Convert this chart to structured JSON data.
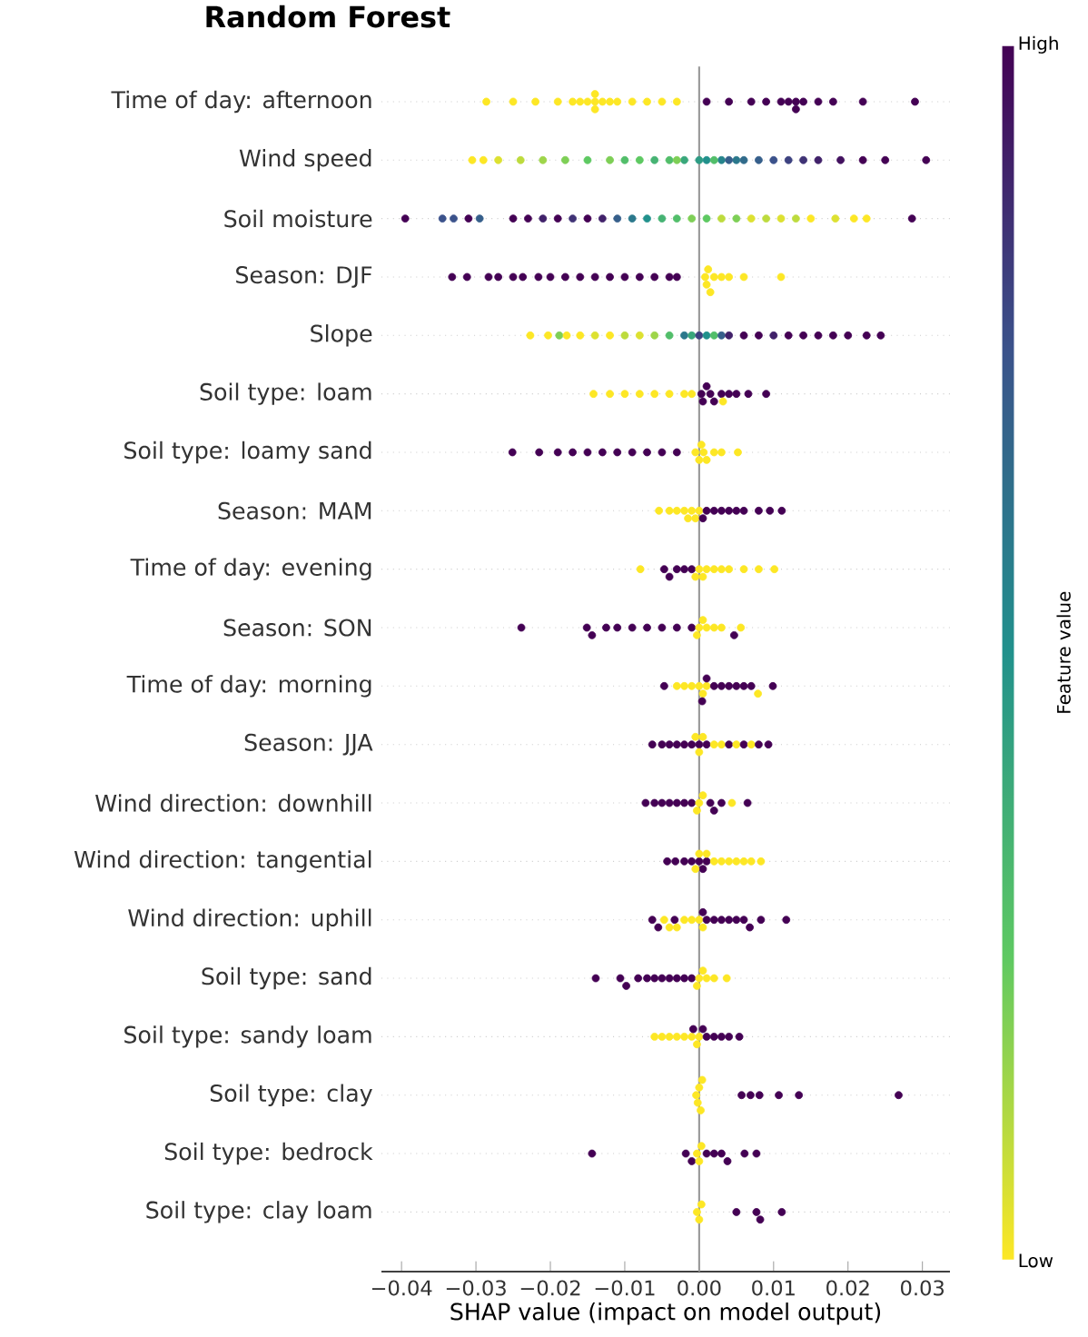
{
  "chart_data": {
    "type": "scatter",
    "orientation": "horizontal",
    "title": "Random Forest",
    "xlabel": "SHAP value (impact on model output)",
    "clabel": "Feature value",
    "marker": "circle",
    "grid": "y",
    "categories": [
      "Time of day: afternoon",
      "Wind speed",
      "Soil moisture",
      "Season: DJF",
      "Slope",
      "Soil type: loam",
      "Soil type: loamy sand",
      "Season: MAM",
      "Time of day: evening",
      "Season: SON",
      "Time of day: morning",
      "Season: JJA",
      "Wind direction: downhill",
      "Wind direction: tangential",
      "Wind direction: uphill",
      "Soil type: sand",
      "Soil type: sandy loam",
      "Soil type: clay",
      "Soil type: bedrock",
      "Soil type: clay loam"
    ],
    "xlim": [
      -0.0427,
      0.0337
    ],
    "xticks": [
      {
        "value": -0.04,
        "label": "−0.04"
      },
      {
        "value": -0.03,
        "label": "−0.03"
      },
      {
        "value": -0.02,
        "label": "−0.02"
      },
      {
        "value": -0.01,
        "label": "−0.01"
      },
      {
        "value": 0,
        "label": "0.00"
      },
      {
        "value": 0.01,
        "label": "0.01"
      },
      {
        "value": 0.02,
        "label": "0.02"
      },
      {
        "value": 0.03,
        "label": "0.03"
      }
    ],
    "clim": [
      0,
      1
    ],
    "cticks": [
      {
        "value": 0,
        "label": "Low"
      },
      {
        "value": 1,
        "label": "High"
      }
    ],
    "ref_lines": [
      {
        "axis": "x",
        "value": 0,
        "color": "#999999"
      }
    ],
    "series": [
      {
        "x": [
          "Time of day: afternoon",
          "Time of day: afternoon",
          "Time of day: afternoon",
          "Time of day: afternoon",
          "Time of day: afternoon",
          "Time of day: afternoon",
          "Time of day: afternoon",
          "Time of day: afternoon",
          "Time of day: afternoon",
          "Time of day: afternoon",
          "Time of day: afternoon",
          "Time of day: afternoon",
          "Time of day: afternoon",
          "Time of day: afternoon",
          "Time of day: afternoon",
          "Time of day: afternoon",
          "Time of day: afternoon",
          "Time of day: afternoon",
          "Time of day: afternoon",
          "Time of day: afternoon",
          "Time of day: afternoon",
          "Time of day: afternoon",
          "Time of day: afternoon",
          "Time of day: afternoon",
          "Time of day: afternoon",
          "Time of day: afternoon",
          "Time of day: afternoon",
          "Time of day: afternoon",
          "Time of day: afternoon",
          "Time of day: afternoon"
        ],
        "values": [
          -0.0286,
          -0.025,
          -0.022,
          -0.019,
          -0.017,
          -0.016,
          -0.015,
          -0.014,
          -0.014,
          -0.014,
          -0.013,
          -0.012,
          -0.011,
          -0.009,
          -0.007,
          -0.005,
          -0.003,
          0.001,
          0.004,
          0.007,
          0.009,
          0.011,
          0.012,
          0.013,
          0.013,
          0.014,
          0.016,
          0.018,
          0.022,
          0.029
        ],
        "cvalues": [
          0,
          0,
          0,
          0,
          0,
          0,
          0,
          0,
          0,
          0,
          0,
          0,
          0,
          0,
          0,
          0,
          0,
          1,
          1,
          1,
          1,
          1,
          1,
          1,
          1,
          1,
          1,
          1,
          1,
          1
        ],
        "colors": [
          "#fde725",
          "#fde725",
          "#fde725",
          "#fde725",
          "#fde725",
          "#fde725",
          "#fde725",
          "#fde725",
          "#fde725",
          "#fde725",
          "#fde725",
          "#fde725",
          "#fde725",
          "#fde725",
          "#fde725",
          "#fde725",
          "#fde725",
          "#440154",
          "#440154",
          "#440154",
          "#440154",
          "#440154",
          "#440154",
          "#440154",
          "#440154",
          "#440154",
          "#440154",
          "#440154",
          "#440154",
          "#440154"
        ]
      },
      {
        "x": [
          "Wind speed",
          "Wind speed",
          "Wind speed",
          "Wind speed",
          "Wind speed",
          "Wind speed",
          "Wind speed",
          "Wind speed",
          "Wind speed",
          "Wind speed",
          "Wind speed",
          "Wind speed",
          "Wind speed",
          "Wind speed",
          "Wind speed",
          "Wind speed",
          "Wind speed",
          "Wind speed",
          "Wind speed",
          "Wind speed",
          "Wind speed",
          "Wind speed",
          "Wind speed",
          "Wind speed",
          "Wind speed",
          "Wind speed",
          "Wind speed",
          "Wind speed",
          "Wind speed",
          "Wind speed"
        ],
        "values": [
          -0.0305,
          -0.029,
          -0.027,
          -0.024,
          -0.021,
          -0.018,
          -0.015,
          -0.012,
          -0.01,
          -0.008,
          -0.006,
          -0.004,
          -0.002,
          0,
          0.001,
          0.003,
          0.005,
          0.006,
          0.008,
          0.01,
          0.012,
          0.014,
          0.016,
          0.019,
          0.022,
          0.025,
          0.0305,
          -0.003,
          0.002,
          0.004
        ],
        "cvalues": [
          0,
          0,
          0.05,
          0.1,
          0.15,
          0.2,
          0.25,
          0.2,
          0.3,
          0.25,
          0.35,
          0.3,
          0.4,
          0.45,
          0.5,
          0.55,
          0.6,
          0.65,
          0.7,
          0.75,
          0.8,
          0.85,
          0.9,
          0.95,
          1,
          1,
          1,
          0.2,
          0.3,
          0.7
        ],
        "colors": [
          "#fde725",
          "#fde725",
          "#dde131",
          "#bddb3d",
          "#9ed54a",
          "#7ecf56",
          "#5ec962",
          "#7ecf56",
          "#52be6a",
          "#5ec962",
          "#46b373",
          "#52be6a",
          "#39a77b",
          "#2d9c84",
          "#21918c",
          "#26848c",
          "#2b788c",
          "#316b8b",
          "#365f8b",
          "#3b528b",
          "#3d4280",
          "#3f3275",
          "#41216a",
          "#42115f",
          "#440154",
          "#440154",
          "#440154",
          "#7ecf56",
          "#52be6a",
          "#365f8b"
        ]
      },
      {
        "x": [
          "Soil moisture",
          "Soil moisture",
          "Soil moisture",
          "Soil moisture",
          "Soil moisture",
          "Soil moisture",
          "Soil moisture",
          "Soil moisture",
          "Soil moisture",
          "Soil moisture",
          "Soil moisture",
          "Soil moisture",
          "Soil moisture",
          "Soil moisture",
          "Soil moisture",
          "Soil moisture",
          "Soil moisture",
          "Soil moisture",
          "Soil moisture",
          "Soil moisture",
          "Soil moisture",
          "Soil moisture",
          "Soil moisture",
          "Soil moisture",
          "Soil moisture",
          "Soil moisture",
          "Soil moisture",
          "Soil moisture",
          "Soil moisture",
          "Soil moisture"
        ],
        "values": [
          -0.0395,
          -0.0345,
          -0.033,
          -0.031,
          -0.0295,
          -0.025,
          -0.023,
          -0.021,
          -0.019,
          -0.017,
          -0.015,
          -0.013,
          -0.011,
          -0.009,
          -0.007,
          -0.005,
          -0.003,
          -0.001,
          0.001,
          0.003,
          0.005,
          0.007,
          0.009,
          0.011,
          0.013,
          0.015,
          0.0183,
          0.0208,
          0.0225,
          0.0286
        ],
        "cvalues": [
          1,
          0.75,
          0.75,
          1,
          0.7,
          1,
          1,
          0.9,
          1,
          0.85,
          1,
          0.9,
          0.7,
          0.6,
          0.5,
          0.35,
          0.3,
          0.2,
          0.25,
          0.1,
          0.2,
          0.05,
          0.1,
          0.05,
          0.1,
          0,
          0.05,
          0,
          0,
          1
        ],
        "colors": [
          "#440154",
          "#3b528b",
          "#3b528b",
          "#440154",
          "#365f8b",
          "#440154",
          "#440154",
          "#41216a",
          "#440154",
          "#3f3275",
          "#440154",
          "#41216a",
          "#365f8b",
          "#2b788c",
          "#21918c",
          "#46b373",
          "#52be6a",
          "#7ecf56",
          "#5ec962",
          "#bddb3d",
          "#7ecf56",
          "#dde131",
          "#bddb3d",
          "#dde131",
          "#bddb3d",
          "#fde725",
          "#dde131",
          "#fde725",
          "#fde725",
          "#440154"
        ]
      },
      {
        "x": [
          "Season: DJF",
          "Season: DJF",
          "Season: DJF",
          "Season: DJF",
          "Season: DJF",
          "Season: DJF",
          "Season: DJF",
          "Season: DJF",
          "Season: DJF",
          "Season: DJF",
          "Season: DJF",
          "Season: DJF",
          "Season: DJF",
          "Season: DJF",
          "Season: DJF",
          "Season: DJF",
          "Season: DJF",
          "Season: DJF",
          "Season: DJF",
          "Season: DJF",
          "Season: DJF",
          "Season: DJF",
          "Season: DJF",
          "Season: DJF",
          "Season: DJF",
          "Season: DJF"
        ],
        "values": [
          -0.0332,
          -0.0312,
          -0.0283,
          -0.027,
          -0.025,
          -0.0237,
          -0.0216,
          -0.02,
          -0.018,
          -0.016,
          -0.014,
          -0.012,
          -0.01,
          -0.008,
          -0.006,
          -0.004,
          -0.003,
          0.0008,
          0.001,
          0.0012,
          0.0015,
          0.002,
          0.003,
          0.004,
          0.006,
          0.011
        ],
        "cvalues": [
          1,
          1,
          1,
          1,
          1,
          1,
          1,
          1,
          1,
          1,
          1,
          1,
          1,
          1,
          1,
          1,
          1,
          0,
          0,
          0,
          0,
          0,
          0,
          0,
          0,
          0
        ],
        "colors": [
          "#440154",
          "#440154",
          "#440154",
          "#440154",
          "#440154",
          "#440154",
          "#440154",
          "#440154",
          "#440154",
          "#440154",
          "#440154",
          "#440154",
          "#440154",
          "#440154",
          "#440154",
          "#440154",
          "#440154",
          "#fde725",
          "#fde725",
          "#fde725",
          "#fde725",
          "#fde725",
          "#fde725",
          "#fde725",
          "#fde725",
          "#fde725"
        ]
      },
      {
        "x": [
          "Slope",
          "Slope",
          "Slope",
          "Slope",
          "Slope",
          "Slope",
          "Slope",
          "Slope",
          "Slope",
          "Slope",
          "Slope",
          "Slope",
          "Slope",
          "Slope",
          "Slope",
          "Slope",
          "Slope",
          "Slope",
          "Slope",
          "Slope",
          "Slope",
          "Slope",
          "Slope",
          "Slope",
          "Slope",
          "Slope",
          "Slope",
          "Slope"
        ],
        "values": [
          -0.0227,
          -0.0203,
          -0.0188,
          -0.0178,
          -0.016,
          -0.014,
          -0.012,
          -0.01,
          -0.008,
          -0.006,
          -0.004,
          -0.002,
          -0.001,
          0,
          0.001,
          0.002,
          0.003,
          0.004,
          0.006,
          0.008,
          0.01,
          0.012,
          0.014,
          0.016,
          0.018,
          0.02,
          0.0225,
          0.0244
        ],
        "cvalues": [
          0,
          0,
          0.2,
          0,
          0,
          0.05,
          0,
          0.1,
          0.05,
          0.15,
          0.3,
          0.6,
          0.4,
          0.8,
          0.5,
          0.3,
          0.7,
          0.9,
          1,
          1,
          0.9,
          1,
          1,
          1,
          1,
          1,
          1,
          1
        ],
        "colors": [
          "#fde725",
          "#fde725",
          "#7ecf56",
          "#fde725",
          "#fde725",
          "#dde131",
          "#fde725",
          "#bddb3d",
          "#dde131",
          "#9ed54a",
          "#52be6a",
          "#2b788c",
          "#39a77b",
          "#3d4280",
          "#21918c",
          "#52be6a",
          "#365f8b",
          "#41216a",
          "#440154",
          "#440154",
          "#41216a",
          "#440154",
          "#440154",
          "#440154",
          "#440154",
          "#440154",
          "#440154",
          "#440154"
        ]
      },
      {
        "x": [
          "Soil type: loam",
          "Soil type: loam",
          "Soil type: loam",
          "Soil type: loam",
          "Soil type: loam",
          "Soil type: loam",
          "Soil type: loam",
          "Soil type: loam",
          "Soil type: loam",
          "Soil type: loam",
          "Soil type: loam",
          "Soil type: loam",
          "Soil type: loam",
          "Soil type: loam",
          "Soil type: loam",
          "Soil type: loam",
          "Soil type: loam",
          "Soil type: loam",
          "Soil type: loam"
        ],
        "values": [
          -0.0142,
          -0.012,
          -0.01,
          -0.008,
          -0.006,
          -0.004,
          -0.002,
          -0.001,
          0.0003,
          0.0005,
          0.001,
          0.0015,
          0.002,
          0.003,
          0.004,
          0.005,
          0.0066,
          0.009,
          0.0032
        ],
        "cvalues": [
          0,
          0,
          0,
          0,
          0,
          0,
          0,
          0,
          1,
          1,
          1,
          1,
          1,
          1,
          1,
          1,
          1,
          1,
          0
        ],
        "colors": [
          "#fde725",
          "#fde725",
          "#fde725",
          "#fde725",
          "#fde725",
          "#fde725",
          "#fde725",
          "#fde725",
          "#440154",
          "#440154",
          "#440154",
          "#440154",
          "#440154",
          "#440154",
          "#440154",
          "#440154",
          "#440154",
          "#440154",
          "#fde725"
        ]
      },
      {
        "x": [
          "Soil type: loamy sand",
          "Soil type: loamy sand",
          "Soil type: loamy sand",
          "Soil type: loamy sand",
          "Soil type: loamy sand",
          "Soil type: loamy sand",
          "Soil type: loamy sand",
          "Soil type: loamy sand",
          "Soil type: loamy sand",
          "Soil type: loamy sand",
          "Soil type: loamy sand",
          "Soil type: loamy sand",
          "Soil type: loamy sand",
          "Soil type: loamy sand",
          "Soil type: loamy sand",
          "Soil type: loamy sand",
          "Soil type: loamy sand",
          "Soil type: loamy sand",
          "Soil type: loamy sand"
        ],
        "values": [
          -0.0251,
          -0.0215,
          -0.019,
          -0.017,
          -0.015,
          -0.013,
          -0.011,
          -0.009,
          -0.007,
          -0.005,
          -0.003,
          -0.0005,
          0,
          0.0003,
          0.0006,
          0.001,
          0.002,
          0.003,
          0.0052
        ],
        "cvalues": [
          1,
          1,
          1,
          1,
          1,
          1,
          1,
          1,
          1,
          1,
          1,
          0,
          0,
          0,
          0,
          0,
          0,
          0,
          0
        ],
        "colors": [
          "#440154",
          "#440154",
          "#440154",
          "#440154",
          "#440154",
          "#440154",
          "#440154",
          "#440154",
          "#440154",
          "#440154",
          "#440154",
          "#fde725",
          "#fde725",
          "#fde725",
          "#fde725",
          "#fde725",
          "#fde725",
          "#fde725",
          "#fde725"
        ]
      },
      {
        "x": [
          "Season: MAM",
          "Season: MAM",
          "Season: MAM",
          "Season: MAM",
          "Season: MAM",
          "Season: MAM",
          "Season: MAM",
          "Season: MAM",
          "Season: MAM",
          "Season: MAM",
          "Season: MAM",
          "Season: MAM",
          "Season: MAM",
          "Season: MAM",
          "Season: MAM",
          "Season: MAM",
          "Season: MAM",
          "Season: MAM"
        ],
        "values": [
          -0.0054,
          -0.004,
          -0.003,
          -0.002,
          -0.0015,
          -0.001,
          -0.0005,
          0,
          0.0005,
          0.001,
          0.002,
          0.003,
          0.004,
          0.005,
          0.006,
          0.008,
          0.0095,
          0.0111
        ],
        "cvalues": [
          0,
          0,
          0,
          0,
          0,
          0,
          0,
          0,
          1,
          1,
          1,
          1,
          1,
          1,
          1,
          1,
          1,
          1
        ],
        "colors": [
          "#fde725",
          "#fde725",
          "#fde725",
          "#fde725",
          "#fde725",
          "#fde725",
          "#fde725",
          "#fde725",
          "#440154",
          "#440154",
          "#440154",
          "#440154",
          "#440154",
          "#440154",
          "#440154",
          "#440154",
          "#440154",
          "#440154"
        ]
      },
      {
        "x": [
          "Time of day: evening",
          "Time of day: evening",
          "Time of day: evening",
          "Time of day: evening",
          "Time of day: evening",
          "Time of day: evening",
          "Time of day: evening",
          "Time of day: evening",
          "Time of day: evening",
          "Time of day: evening",
          "Time of day: evening",
          "Time of day: evening",
          "Time of day: evening",
          "Time of day: evening",
          "Time of day: evening",
          "Time of day: evening"
        ],
        "values": [
          -0.0079,
          -0.0047,
          -0.004,
          -0.003,
          -0.002,
          -0.001,
          -0.0005,
          0,
          0.0005,
          0.001,
          0.002,
          0.003,
          0.004,
          0.006,
          0.008,
          0.0101
        ],
        "cvalues": [
          0,
          1,
          1,
          1,
          1,
          1,
          0,
          0,
          0,
          0,
          0,
          0,
          0,
          0,
          0,
          0
        ],
        "colors": [
          "#fde725",
          "#440154",
          "#440154",
          "#440154",
          "#440154",
          "#440154",
          "#fde725",
          "#fde725",
          "#fde725",
          "#fde725",
          "#fde725",
          "#fde725",
          "#fde725",
          "#fde725",
          "#fde725",
          "#fde725"
        ]
      },
      {
        "x": [
          "Season: SON",
          "Season: SON",
          "Season: SON",
          "Season: SON",
          "Season: SON",
          "Season: SON",
          "Season: SON",
          "Season: SON",
          "Season: SON",
          "Season: SON",
          "Season: SON",
          "Season: SON",
          "Season: SON",
          "Season: SON",
          "Season: SON",
          "Season: SON",
          "Season: SON",
          "Season: SON"
        ],
        "values": [
          -0.0239,
          -0.0151,
          -0.0144,
          -0.0125,
          -0.011,
          -0.009,
          -0.007,
          -0.005,
          -0.003,
          -0.001,
          -0.0003,
          0,
          0.0005,
          0.001,
          0.002,
          0.003,
          0.0056,
          0.0047
        ],
        "cvalues": [
          1,
          1,
          1,
          1,
          1,
          1,
          1,
          1,
          1,
          1,
          0,
          0,
          0,
          0,
          0,
          0,
          0,
          1
        ],
        "colors": [
          "#440154",
          "#440154",
          "#440154",
          "#440154",
          "#440154",
          "#440154",
          "#440154",
          "#440154",
          "#440154",
          "#440154",
          "#fde725",
          "#fde725",
          "#fde725",
          "#fde725",
          "#fde725",
          "#fde725",
          "#fde725",
          "#440154"
        ]
      },
      {
        "x": [
          "Time of day: morning",
          "Time of day: morning",
          "Time of day: morning",
          "Time of day: morning",
          "Time of day: morning",
          "Time of day: morning",
          "Time of day: morning",
          "Time of day: morning",
          "Time of day: morning",
          "Time of day: morning",
          "Time of day: morning",
          "Time of day: morning",
          "Time of day: morning",
          "Time of day: morning",
          "Time of day: morning",
          "Time of day: morning",
          "Time of day: morning"
        ],
        "values": [
          -0.0047,
          -0.003,
          -0.002,
          -0.001,
          0,
          0.0005,
          0.001,
          0.001,
          0.002,
          0.003,
          0.004,
          0.005,
          0.006,
          0.007,
          0.0079,
          0.0099,
          0.0004
        ],
        "cvalues": [
          1,
          0,
          0,
          0,
          0,
          0,
          0,
          1,
          1,
          1,
          1,
          1,
          1,
          1,
          0,
          1,
          1
        ],
        "colors": [
          "#440154",
          "#fde725",
          "#fde725",
          "#fde725",
          "#fde725",
          "#fde725",
          "#fde725",
          "#440154",
          "#440154",
          "#440154",
          "#440154",
          "#440154",
          "#440154",
          "#440154",
          "#fde725",
          "#440154",
          "#440154"
        ]
      },
      {
        "x": [
          "Season: JJA",
          "Season: JJA",
          "Season: JJA",
          "Season: JJA",
          "Season: JJA",
          "Season: JJA",
          "Season: JJA",
          "Season: JJA",
          "Season: JJA",
          "Season: JJA",
          "Season: JJA",
          "Season: JJA",
          "Season: JJA",
          "Season: JJA",
          "Season: JJA",
          "Season: JJA",
          "Season: JJA",
          "Season: JJA",
          "Season: JJA"
        ],
        "values": [
          -0.0063,
          -0.005,
          -0.004,
          -0.003,
          -0.002,
          -0.001,
          0,
          0,
          0.0005,
          0.001,
          0.002,
          0.003,
          0.004,
          0.005,
          0.006,
          0.007,
          0.008,
          0.0093,
          -0.0005
        ],
        "cvalues": [
          1,
          1,
          1,
          1,
          1,
          1,
          1,
          0,
          0,
          1,
          0,
          0,
          1,
          0,
          1,
          0,
          1,
          1,
          0
        ],
        "colors": [
          "#440154",
          "#440154",
          "#440154",
          "#440154",
          "#440154",
          "#440154",
          "#440154",
          "#fde725",
          "#fde725",
          "#440154",
          "#fde725",
          "#fde725",
          "#440154",
          "#fde725",
          "#440154",
          "#fde725",
          "#440154",
          "#440154",
          "#fde725"
        ]
      },
      {
        "x": [
          "Wind direction: downhill",
          "Wind direction: downhill",
          "Wind direction: downhill",
          "Wind direction: downhill",
          "Wind direction: downhill",
          "Wind direction: downhill",
          "Wind direction: downhill",
          "Wind direction: downhill",
          "Wind direction: downhill",
          "Wind direction: downhill",
          "Wind direction: downhill",
          "Wind direction: downhill",
          "Wind direction: downhill",
          "Wind direction: downhill",
          "Wind direction: downhill"
        ],
        "values": [
          -0.0072,
          -0.006,
          -0.005,
          -0.004,
          -0.003,
          -0.002,
          -0.001,
          -0.0003,
          0,
          0.0005,
          0.0044,
          0.0015,
          0.002,
          0.003,
          0.0065
        ],
        "cvalues": [
          1,
          1,
          1,
          1,
          1,
          1,
          1,
          0,
          0,
          0,
          0,
          1,
          1,
          1,
          1
        ],
        "colors": [
          "#440154",
          "#440154",
          "#440154",
          "#440154",
          "#440154",
          "#440154",
          "#440154",
          "#fde725",
          "#fde725",
          "#fde725",
          "#fde725",
          "#440154",
          "#440154",
          "#440154",
          "#440154"
        ]
      },
      {
        "x": [
          "Wind direction: tangential",
          "Wind direction: tangential",
          "Wind direction: tangential",
          "Wind direction: tangential",
          "Wind direction: tangential",
          "Wind direction: tangential",
          "Wind direction: tangential",
          "Wind direction: tangential",
          "Wind direction: tangential",
          "Wind direction: tangential",
          "Wind direction: tangential",
          "Wind direction: tangential",
          "Wind direction: tangential",
          "Wind direction: tangential",
          "Wind direction: tangential",
          "Wind direction: tangential",
          "Wind direction: tangential"
        ],
        "values": [
          -0.0043,
          -0.0032,
          -0.002,
          -0.001,
          0,
          0.0005,
          0.001,
          -0.0005,
          0,
          0.001,
          0.002,
          0.003,
          0.004,
          0.005,
          0.006,
          0.007,
          0.0083
        ],
        "cvalues": [
          1,
          1,
          1,
          1,
          1,
          1,
          1,
          0,
          0,
          0,
          0,
          0,
          0,
          0,
          0,
          0,
          0
        ],
        "colors": [
          "#440154",
          "#440154",
          "#440154",
          "#440154",
          "#440154",
          "#440154",
          "#440154",
          "#fde725",
          "#fde725",
          "#fde725",
          "#fde725",
          "#fde725",
          "#fde725",
          "#fde725",
          "#fde725",
          "#fde725",
          "#fde725"
        ]
      },
      {
        "x": [
          "Wind direction: uphill",
          "Wind direction: uphill",
          "Wind direction: uphill",
          "Wind direction: uphill",
          "Wind direction: uphill",
          "Wind direction: uphill",
          "Wind direction: uphill",
          "Wind direction: uphill",
          "Wind direction: uphill",
          "Wind direction: uphill",
          "Wind direction: uphill",
          "Wind direction: uphill",
          "Wind direction: uphill",
          "Wind direction: uphill",
          "Wind direction: uphill",
          "Wind direction: uphill",
          "Wind direction: uphill",
          "Wind direction: uphill",
          "Wind direction: uphill",
          "Wind direction: uphill"
        ],
        "values": [
          -0.0063,
          -0.0055,
          -0.0047,
          -0.004,
          -0.0033,
          -0.003,
          -0.002,
          -0.001,
          0,
          0.0005,
          0.0005,
          0.001,
          0.002,
          0.003,
          0.004,
          0.005,
          0.006,
          0.0068,
          0.0083,
          0.0117
        ],
        "cvalues": [
          1,
          1,
          0,
          0,
          1,
          0,
          0,
          0,
          0,
          0,
          1,
          1,
          1,
          1,
          1,
          1,
          1,
          1,
          1,
          1
        ],
        "colors": [
          "#440154",
          "#440154",
          "#fde725",
          "#fde725",
          "#440154",
          "#fde725",
          "#fde725",
          "#fde725",
          "#fde725",
          "#fde725",
          "#440154",
          "#440154",
          "#440154",
          "#440154",
          "#440154",
          "#440154",
          "#440154",
          "#440154",
          "#440154",
          "#440154"
        ]
      },
      {
        "x": [
          "Soil type: sand",
          "Soil type: sand",
          "Soil type: sand",
          "Soil type: sand",
          "Soil type: sand",
          "Soil type: sand",
          "Soil type: sand",
          "Soil type: sand",
          "Soil type: sand",
          "Soil type: sand",
          "Soil type: sand",
          "Soil type: sand",
          "Soil type: sand",
          "Soil type: sand",
          "Soil type: sand",
          "Soil type: sand",
          "Soil type: sand"
        ],
        "values": [
          -0.0139,
          -0.0106,
          -0.0098,
          -0.0082,
          -0.007,
          -0.006,
          -0.005,
          -0.004,
          -0.003,
          -0.002,
          -0.001,
          -0.0003,
          0,
          0.0005,
          0.001,
          0.002,
          0.0037
        ],
        "cvalues": [
          1,
          1,
          1,
          1,
          1,
          1,
          1,
          1,
          1,
          1,
          1,
          0,
          0,
          0,
          0,
          0,
          0
        ],
        "colors": [
          "#440154",
          "#440154",
          "#440154",
          "#440154",
          "#440154",
          "#440154",
          "#440154",
          "#440154",
          "#440154",
          "#440154",
          "#440154",
          "#fde725",
          "#fde725",
          "#fde725",
          "#fde725",
          "#fde725",
          "#fde725"
        ]
      },
      {
        "x": [
          "Soil type: sandy loam",
          "Soil type: sandy loam",
          "Soil type: sandy loam",
          "Soil type: sandy loam",
          "Soil type: sandy loam",
          "Soil type: sandy loam",
          "Soil type: sandy loam",
          "Soil type: sandy loam",
          "Soil type: sandy loam",
          "Soil type: sandy loam",
          "Soil type: sandy loam",
          "Soil type: sandy loam",
          "Soil type: sandy loam",
          "Soil type: sandy loam",
          "Soil type: sandy loam"
        ],
        "values": [
          -0.006,
          -0.005,
          -0.004,
          -0.003,
          -0.002,
          -0.001,
          -0.0003,
          0,
          0.0005,
          0.001,
          0.002,
          0.003,
          0.004,
          0.0054,
          -0.0008
        ],
        "cvalues": [
          0,
          0,
          0,
          0,
          0,
          0,
          0,
          0,
          1,
          1,
          1,
          1,
          1,
          1,
          1
        ],
        "colors": [
          "#fde725",
          "#fde725",
          "#fde725",
          "#fde725",
          "#fde725",
          "#fde725",
          "#fde725",
          "#fde725",
          "#440154",
          "#440154",
          "#440154",
          "#440154",
          "#440154",
          "#440154",
          "#440154"
        ]
      },
      {
        "x": [
          "Soil type: clay",
          "Soil type: clay",
          "Soil type: clay",
          "Soil type: clay",
          "Soil type: clay",
          "Soil type: clay",
          "Soil type: clay",
          "Soil type: clay",
          "Soil type: clay",
          "Soil type: clay",
          "Soil type: clay"
        ],
        "values": [
          -0.0004,
          -0.0002,
          0,
          0.0002,
          0.0004,
          0.0057,
          0.0069,
          0.0081,
          0.0107,
          0.0134,
          0.0268
        ],
        "cvalues": [
          0,
          0,
          0,
          0,
          0,
          1,
          1,
          1,
          1,
          1,
          1
        ],
        "colors": [
          "#fde725",
          "#fde725",
          "#fde725",
          "#fde725",
          "#fde725",
          "#440154",
          "#440154",
          "#440154",
          "#440154",
          "#440154",
          "#440154"
        ]
      },
      {
        "x": [
          "Soil type: bedrock",
          "Soil type: bedrock",
          "Soil type: bedrock",
          "Soil type: bedrock",
          "Soil type: bedrock",
          "Soil type: bedrock",
          "Soil type: bedrock",
          "Soil type: bedrock",
          "Soil type: bedrock",
          "Soil type: bedrock",
          "Soil type: bedrock",
          "Soil type: bedrock"
        ],
        "values": [
          -0.0144,
          -0.0018,
          -0.001,
          0.001,
          0.002,
          0.003,
          0.0038,
          0.0061,
          0.0077,
          -0.0003,
          0,
          0.0003
        ],
        "cvalues": [
          1,
          1,
          1,
          1,
          1,
          1,
          1,
          1,
          1,
          0,
          0,
          0
        ],
        "colors": [
          "#440154",
          "#440154",
          "#440154",
          "#440154",
          "#440154",
          "#440154",
          "#440154",
          "#440154",
          "#440154",
          "#fde725",
          "#fde725",
          "#fde725"
        ]
      },
      {
        "x": [
          "Soil type: clay loam",
          "Soil type: clay loam",
          "Soil type: clay loam",
          "Soil type: clay loam",
          "Soil type: clay loam",
          "Soil type: clay loam",
          "Soil type: clay loam"
        ],
        "values": [
          -0.0003,
          0,
          0.0003,
          0.005,
          0.0077,
          0.0082,
          0.0111
        ],
        "cvalues": [
          0,
          0,
          0,
          1,
          1,
          1,
          1
        ],
        "colors": [
          "#fde725",
          "#fde725",
          "#fde725",
          "#440154",
          "#440154",
          "#440154",
          "#440154"
        ]
      }
    ]
  }
}
